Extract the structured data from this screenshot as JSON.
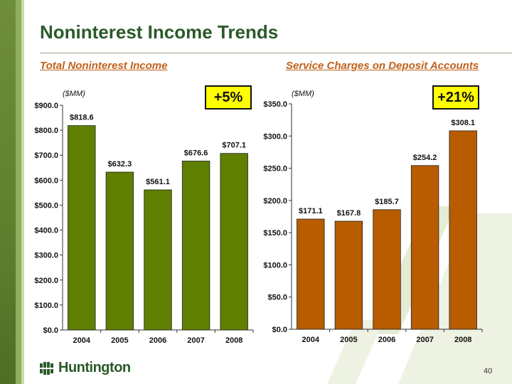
{
  "slide": {
    "title": "Noninterest Income Trends",
    "page_number": "40",
    "logo_text": "Huntington"
  },
  "colors": {
    "green_bar": "#5f7f00",
    "orange_bar": "#b85c00",
    "title": "#2a5a2a",
    "subtitle": "#c0611a",
    "badge": "#ffff00"
  },
  "left": {
    "subtitle": "Total Noninterest Income",
    "unit": "($MM)",
    "badge": "+5%"
  },
  "right": {
    "subtitle": "Service Charges on Deposit Accounts",
    "unit": "($MM)",
    "badge": "+21%"
  },
  "chart_data": [
    {
      "type": "bar",
      "title": "Total Noninterest Income",
      "ylabel": "($MM)",
      "categories": [
        "2004",
        "2005",
        "2006",
        "2007",
        "2008"
      ],
      "values": [
        818.6,
        632.3,
        561.1,
        676.6,
        707.1
      ],
      "data_labels": [
        "$818.6",
        "$632.3",
        "$561.1",
        "$676.6",
        "$707.1"
      ],
      "ylim": [
        0,
        900
      ],
      "yticks": [
        0,
        100,
        200,
        300,
        400,
        500,
        600,
        700,
        800,
        900
      ],
      "ytick_labels": [
        "$0.0",
        "$100.0",
        "$200.0",
        "$300.0",
        "$400.0",
        "$500.0",
        "$600.0",
        "$700.0",
        "$800.0",
        "$900.0"
      ],
      "grid": false,
      "color": "#5f7f00"
    },
    {
      "type": "bar",
      "title": "Service Charges on Deposit Accounts",
      "ylabel": "($MM)",
      "categories": [
        "2004",
        "2005",
        "2006",
        "2007",
        "2008"
      ],
      "values": [
        171.1,
        167.8,
        185.7,
        254.2,
        308.1
      ],
      "data_labels": [
        "$171.1",
        "$167.8",
        "$185.7",
        "$254.2",
        "$308.1"
      ],
      "ylim": [
        0,
        350
      ],
      "yticks": [
        0,
        50,
        100,
        150,
        200,
        250,
        300,
        350
      ],
      "ytick_labels": [
        "$0.0",
        "$50.0",
        "$100.0",
        "$150.0",
        "$200.0",
        "$250.0",
        "$300.0",
        "$350.0"
      ],
      "grid": false,
      "color": "#b85c00"
    }
  ]
}
